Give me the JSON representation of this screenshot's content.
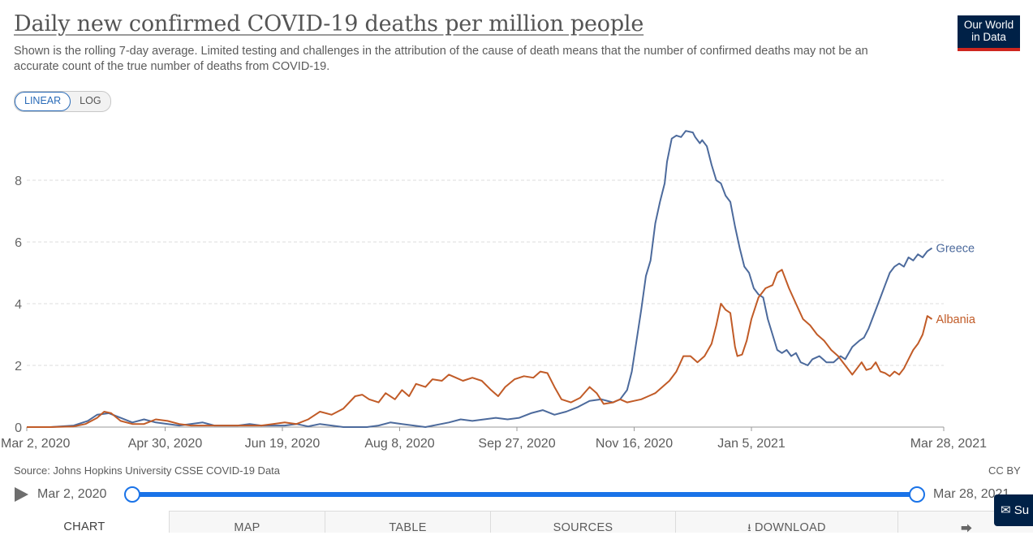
{
  "header": {
    "title": "Daily new confirmed COVID-19 deaths per million people",
    "subtitle": "Shown is the rolling 7-day average. Limited testing and challenges in the attribution of the cause of death means that the number of confirmed deaths may not be an accurate count of the true number of deaths from COVID-19.",
    "logo_line1": "Our World",
    "logo_line2": "in Data"
  },
  "scale": {
    "linear_label": "LINEAR",
    "log_label": "LOG",
    "selected": "LINEAR"
  },
  "footer": {
    "source": "Source: Johns Hopkins University CSSE COVID-19 Data",
    "license": "CC BY"
  },
  "timeline": {
    "start_label": "Mar 2, 2020",
    "end_label": "Mar 28, 2021"
  },
  "tabs": {
    "chart": "CHART",
    "map": "MAP",
    "table": "TABLE",
    "sources": "SOURCES",
    "download": "DOWNLOAD"
  },
  "icons": {
    "play": "play-icon",
    "download": "download-icon",
    "share": "share-icon",
    "subscribe": "email-icon"
  },
  "subscribe_label": "Su",
  "colors": {
    "Greece": "#4c6a9c",
    "Albania": "#c15b27",
    "accent": "#1a73e8",
    "brand": "#002147",
    "brand_bar": "#ce261e"
  },
  "chart_data": {
    "type": "line",
    "title": "Daily new confirmed COVID-19 deaths per million people",
    "xlabel": "",
    "ylabel": "",
    "x_range_days": [
      0,
      391
    ],
    "ylim": [
      0,
      9.6
    ],
    "yticks": [
      0,
      2,
      4,
      6,
      8
    ],
    "grid": true,
    "xticks": [
      {
        "day": 0,
        "label": "Mar 2, 2020"
      },
      {
        "day": 59,
        "label": "Apr 30, 2020"
      },
      {
        "day": 109,
        "label": "Jun 19, 2020"
      },
      {
        "day": 159,
        "label": "Aug 8, 2020"
      },
      {
        "day": 209,
        "label": "Sep 27, 2020"
      },
      {
        "day": 259,
        "label": "Nov 16, 2020"
      },
      {
        "day": 309,
        "label": "Jan 5, 2021"
      },
      {
        "day": 391,
        "label": "Mar 28, 2021"
      }
    ],
    "series": [
      {
        "name": "Greece",
        "points": [
          [
            0,
            0
          ],
          [
            10,
            0
          ],
          [
            20,
            0.05
          ],
          [
            26,
            0.2
          ],
          [
            30,
            0.4
          ],
          [
            35,
            0.45
          ],
          [
            40,
            0.3
          ],
          [
            45,
            0.15
          ],
          [
            50,
            0.25
          ],
          [
            55,
            0.15
          ],
          [
            65,
            0.05
          ],
          [
            75,
            0.15
          ],
          [
            80,
            0.05
          ],
          [
            90,
            0.05
          ],
          [
            95,
            0.1
          ],
          [
            100,
            0.05
          ],
          [
            110,
            0.05
          ],
          [
            115,
            0.1
          ],
          [
            120,
            0.02
          ],
          [
            125,
            0.1
          ],
          [
            130,
            0.05
          ],
          [
            135,
            0.0
          ],
          [
            145,
            0.0
          ],
          [
            150,
            0.05
          ],
          [
            155,
            0.15
          ],
          [
            160,
            0.1
          ],
          [
            165,
            0.05
          ],
          [
            170,
            0.0
          ],
          [
            180,
            0.15
          ],
          [
            185,
            0.25
          ],
          [
            190,
            0.2
          ],
          [
            200,
            0.3
          ],
          [
            205,
            0.25
          ],
          [
            210,
            0.3
          ],
          [
            215,
            0.45
          ],
          [
            220,
            0.55
          ],
          [
            225,
            0.4
          ],
          [
            230,
            0.5
          ],
          [
            235,
            0.65
          ],
          [
            240,
            0.85
          ],
          [
            245,
            0.9
          ],
          [
            250,
            0.8
          ],
          [
            253,
            0.9
          ],
          [
            256,
            1.2
          ],
          [
            258,
            1.8
          ],
          [
            260,
            2.8
          ],
          [
            262,
            3.8
          ],
          [
            264,
            4.9
          ],
          [
            266,
            5.4
          ],
          [
            268,
            6.6
          ],
          [
            270,
            7.3
          ],
          [
            272,
            7.9
          ],
          [
            273,
            8.6
          ],
          [
            275,
            9.35
          ],
          [
            277,
            9.45
          ],
          [
            279,
            9.4
          ],
          [
            281,
            9.6
          ],
          [
            284,
            9.55
          ],
          [
            285,
            9.4
          ],
          [
            287,
            9.2
          ],
          [
            288,
            9.3
          ],
          [
            290,
            9.1
          ],
          [
            292,
            8.5
          ],
          [
            294,
            8.0
          ],
          [
            296,
            7.9
          ],
          [
            298,
            7.5
          ],
          [
            300,
            7.3
          ],
          [
            302,
            6.5
          ],
          [
            304,
            5.8
          ],
          [
            306,
            5.2
          ],
          [
            308,
            5.0
          ],
          [
            310,
            4.5
          ],
          [
            312,
            4.3
          ],
          [
            314,
            4.2
          ],
          [
            316,
            3.5
          ],
          [
            318,
            3.0
          ],
          [
            320,
            2.5
          ],
          [
            322,
            2.4
          ],
          [
            324,
            2.5
          ],
          [
            326,
            2.3
          ],
          [
            328,
            2.4
          ],
          [
            330,
            2.1
          ],
          [
            333,
            2.0
          ],
          [
            335,
            2.2
          ],
          [
            338,
            2.3
          ],
          [
            341,
            2.1
          ],
          [
            344,
            2.1
          ],
          [
            347,
            2.3
          ],
          [
            349,
            2.2
          ],
          [
            352,
            2.6
          ],
          [
            355,
            2.8
          ],
          [
            357,
            2.9
          ],
          [
            359,
            3.2
          ],
          [
            362,
            3.8
          ],
          [
            364,
            4.2
          ],
          [
            366,
            4.6
          ],
          [
            368,
            5.0
          ],
          [
            370,
            5.2
          ],
          [
            372,
            5.3
          ],
          [
            374,
            5.2
          ],
          [
            376,
            5.5
          ],
          [
            378,
            5.4
          ],
          [
            380,
            5.6
          ],
          [
            382,
            5.5
          ],
          [
            384,
            5.7
          ],
          [
            386,
            5.8
          ]
        ]
      },
      {
        "name": "Albania",
        "points": [
          [
            0,
            0
          ],
          [
            10,
            0
          ],
          [
            20,
            0.02
          ],
          [
            25,
            0.1
          ],
          [
            30,
            0.3
          ],
          [
            33,
            0.5
          ],
          [
            36,
            0.45
          ],
          [
            40,
            0.2
          ],
          [
            45,
            0.1
          ],
          [
            50,
            0.1
          ],
          [
            55,
            0.25
          ],
          [
            60,
            0.2
          ],
          [
            65,
            0.1
          ],
          [
            70,
            0.05
          ],
          [
            80,
            0.05
          ],
          [
            85,
            0.05
          ],
          [
            90,
            0.05
          ],
          [
            95,
            0.05
          ],
          [
            100,
            0.05
          ],
          [
            105,
            0.1
          ],
          [
            110,
            0.15
          ],
          [
            115,
            0.1
          ],
          [
            120,
            0.25
          ],
          [
            125,
            0.5
          ],
          [
            130,
            0.4
          ],
          [
            135,
            0.6
          ],
          [
            140,
            1.0
          ],
          [
            143,
            1.05
          ],
          [
            146,
            0.9
          ],
          [
            150,
            0.8
          ],
          [
            153,
            1.1
          ],
          [
            157,
            0.9
          ],
          [
            160,
            1.2
          ],
          [
            163,
            1.0
          ],
          [
            166,
            1.4
          ],
          [
            170,
            1.3
          ],
          [
            173,
            1.55
          ],
          [
            177,
            1.5
          ],
          [
            180,
            1.7
          ],
          [
            183,
            1.6
          ],
          [
            186,
            1.5
          ],
          [
            190,
            1.6
          ],
          [
            194,
            1.5
          ],
          [
            198,
            1.2
          ],
          [
            201,
            1.0
          ],
          [
            204,
            1.3
          ],
          [
            208,
            1.55
          ],
          [
            212,
            1.65
          ],
          [
            216,
            1.6
          ],
          [
            219,
            1.8
          ],
          [
            222,
            1.75
          ],
          [
            225,
            1.3
          ],
          [
            228,
            0.9
          ],
          [
            232,
            0.8
          ],
          [
            236,
            0.95
          ],
          [
            240,
            1.3
          ],
          [
            243,
            1.1
          ],
          [
            246,
            0.75
          ],
          [
            250,
            0.8
          ],
          [
            253,
            0.9
          ],
          [
            256,
            0.8
          ],
          [
            259,
            0.85
          ],
          [
            262,
            0.9
          ],
          [
            265,
            1.0
          ],
          [
            268,
            1.1
          ],
          [
            271,
            1.3
          ],
          [
            274,
            1.5
          ],
          [
            277,
            1.8
          ],
          [
            280,
            2.3
          ],
          [
            283,
            2.3
          ],
          [
            286,
            2.1
          ],
          [
            289,
            2.3
          ],
          [
            292,
            2.7
          ],
          [
            294,
            3.3
          ],
          [
            296,
            4.0
          ],
          [
            298,
            3.8
          ],
          [
            300,
            3.7
          ],
          [
            302,
            2.6
          ],
          [
            303,
            2.3
          ],
          [
            305,
            2.35
          ],
          [
            307,
            2.8
          ],
          [
            309,
            3.5
          ],
          [
            312,
            4.2
          ],
          [
            315,
            4.5
          ],
          [
            318,
            4.6
          ],
          [
            320,
            5.0
          ],
          [
            322,
            5.1
          ],
          [
            325,
            4.5
          ],
          [
            328,
            4.0
          ],
          [
            331,
            3.5
          ],
          [
            334,
            3.3
          ],
          [
            337,
            3.0
          ],
          [
            340,
            2.8
          ],
          [
            343,
            2.5
          ],
          [
            346,
            2.3
          ],
          [
            349,
            2.0
          ],
          [
            352,
            1.7
          ],
          [
            354,
            1.9
          ],
          [
            356,
            2.1
          ],
          [
            358,
            1.85
          ],
          [
            360,
            1.9
          ],
          [
            362,
            2.1
          ],
          [
            364,
            1.8
          ],
          [
            366,
            1.75
          ],
          [
            368,
            1.65
          ],
          [
            370,
            1.8
          ],
          [
            372,
            1.7
          ],
          [
            374,
            1.9
          ],
          [
            376,
            2.2
          ],
          [
            378,
            2.5
          ],
          [
            380,
            2.7
          ],
          [
            382,
            3.0
          ],
          [
            384,
            3.6
          ],
          [
            386,
            3.5
          ]
        ]
      }
    ]
  }
}
